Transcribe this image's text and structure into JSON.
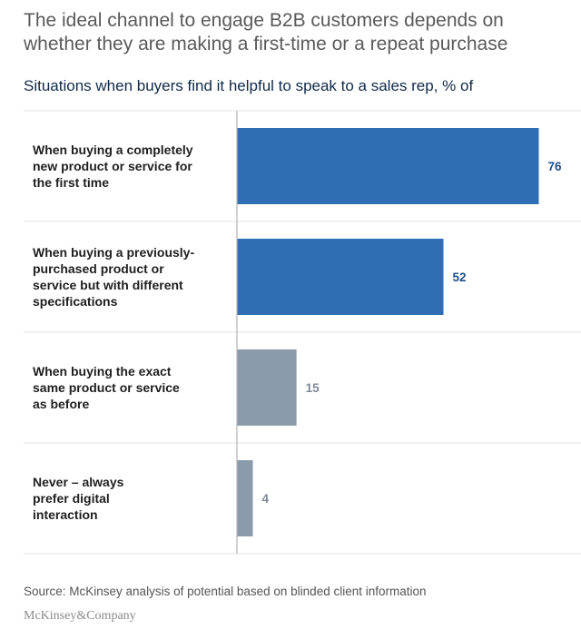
{
  "title": "The ideal channel to engage B2B customers depends on whether they are making a first-time or a repeat purchase",
  "subtitle": "Situations when buyers find it helpful to speak to a sales rep, % of",
  "source": "Source: McKinsey analysis of potential based on blinded client information",
  "brand": "McKinsey&Company",
  "colors": {
    "primary_bar": "#2f6db5",
    "primary_label": "#1e4f8f",
    "secondary_bar": "#8a9bab",
    "secondary_label": "#7d8a96",
    "gridline": "#e3e3e3",
    "axis": "#b5b5b5"
  },
  "chart_data": {
    "type": "bar",
    "orientation": "horizontal",
    "categories": [
      "When buying a completely new product or service for the first time",
      "When buying a previously-purchased product or service but with different specifications",
      "When buying the exact same product or service as before",
      "Never – always prefer digital interaction"
    ],
    "category_lines": [
      [
        "When buying a completely",
        "new product or service for",
        "the first time"
      ],
      [
        "When buying a previously-",
        "purchased product or",
        "service but with different",
        "specifications"
      ],
      [
        "When buying the exact",
        "same product or service",
        "as before"
      ],
      [
        "Never – always",
        "prefer digital",
        "interaction"
      ]
    ],
    "values": [
      76,
      52,
      15,
      4
    ],
    "highlight": [
      true,
      true,
      false,
      false
    ],
    "xlim": [
      0,
      80
    ],
    "grid": false,
    "legend": "none"
  }
}
